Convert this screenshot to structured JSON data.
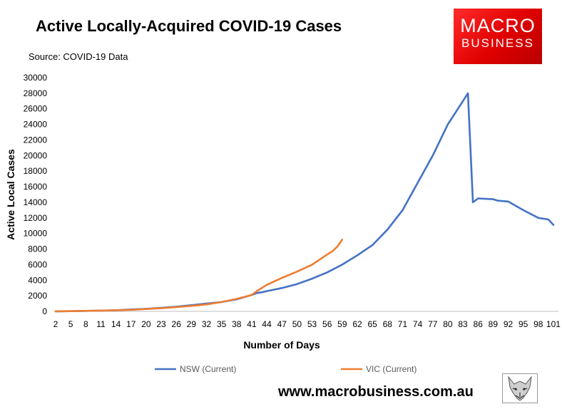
{
  "header": {
    "title": "Active Locally-Acquired COVID-19 Cases",
    "source": "Source: COVID-19 Data"
  },
  "logo": {
    "line1": "MACRO",
    "line2": "BUSINESS",
    "color": "#e60000"
  },
  "footer": {
    "website": "www.macrobusiness.com.au",
    "emblem": "wolf-logo-icon"
  },
  "chart_data": {
    "type": "line",
    "title": "Active Locally-Acquired COVID-19 Cases",
    "xlabel": "Number of Days",
    "ylabel": "Active Local Cases",
    "xlim": [
      2,
      102
    ],
    "ylim": [
      0,
      30000
    ],
    "y_ticks": [
      0,
      2000,
      4000,
      6000,
      8000,
      10000,
      12000,
      14000,
      16000,
      18000,
      20000,
      22000,
      24000,
      26000,
      28000,
      30000
    ],
    "x_ticks": [
      2,
      5,
      8,
      11,
      14,
      17,
      20,
      23,
      26,
      29,
      32,
      35,
      38,
      41,
      44,
      47,
      50,
      53,
      56,
      59,
      62,
      65,
      68,
      71,
      74,
      77,
      80,
      83,
      86,
      89,
      92,
      95,
      98,
      101
    ],
    "grid": false,
    "legend_position": "bottom",
    "series": [
      {
        "name": "NSW (Current)",
        "color": "#4472c4",
        "points": [
          [
            2,
            10
          ],
          [
            5,
            30
          ],
          [
            8,
            60
          ],
          [
            11,
            100
          ],
          [
            14,
            150
          ],
          [
            17,
            250
          ],
          [
            20,
            330
          ],
          [
            23,
            450
          ],
          [
            26,
            600
          ],
          [
            29,
            800
          ],
          [
            32,
            1000
          ],
          [
            35,
            1200
          ],
          [
            38,
            1550
          ],
          [
            41,
            2100
          ],
          [
            42,
            2350
          ],
          [
            43,
            2450
          ],
          [
            44,
            2600
          ],
          [
            47,
            3000
          ],
          [
            50,
            3500
          ],
          [
            53,
            4200
          ],
          [
            56,
            5000
          ],
          [
            59,
            6000
          ],
          [
            62,
            7200
          ],
          [
            65,
            8500
          ],
          [
            68,
            10500
          ],
          [
            71,
            13000
          ],
          [
            74,
            16500
          ],
          [
            77,
            20000
          ],
          [
            80,
            24000
          ],
          [
            83,
            27000
          ],
          [
            84,
            28000
          ],
          [
            85,
            14000
          ],
          [
            86,
            14500
          ],
          [
            89,
            14400
          ],
          [
            90,
            14200
          ],
          [
            92,
            14100
          ],
          [
            95,
            13000
          ],
          [
            98,
            12000
          ],
          [
            100,
            11800
          ],
          [
            101,
            11100
          ]
        ]
      },
      {
        "name": "VIC (Current)",
        "color": "#ed7d31",
        "points": [
          [
            2,
            10
          ],
          [
            5,
            30
          ],
          [
            8,
            60
          ],
          [
            11,
            100
          ],
          [
            14,
            150
          ],
          [
            17,
            200
          ],
          [
            20,
            300
          ],
          [
            23,
            400
          ],
          [
            26,
            550
          ],
          [
            29,
            700
          ],
          [
            32,
            900
          ],
          [
            35,
            1200
          ],
          [
            38,
            1600
          ],
          [
            41,
            2100
          ],
          [
            42,
            2600
          ],
          [
            43,
            3000
          ],
          [
            44,
            3400
          ],
          [
            47,
            4300
          ],
          [
            50,
            5100
          ],
          [
            53,
            6000
          ],
          [
            56,
            7300
          ],
          [
            57,
            7700
          ],
          [
            58,
            8300
          ],
          [
            59,
            9200
          ]
        ]
      }
    ]
  }
}
